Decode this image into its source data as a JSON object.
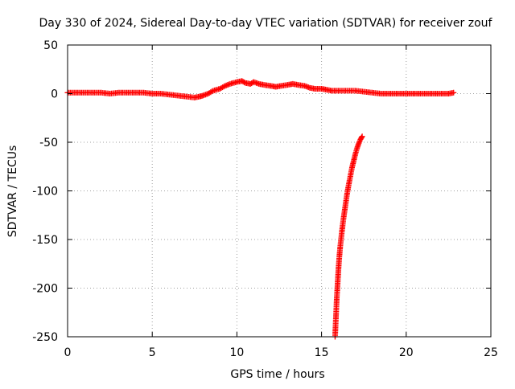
{
  "chart_data": {
    "type": "scatter",
    "title": "Day 330 of 2024, Sidereal Day-to-day VTEC variation (SDTVAR) for receiver zouf",
    "xlabel": "GPS time / hours",
    "ylabel": "SDTVAR / TECUs",
    "xlim": [
      0,
      25
    ],
    "ylim": [
      -250,
      50
    ],
    "xticks": [
      0,
      5,
      10,
      15,
      20,
      25
    ],
    "yticks": [
      50,
      0,
      -50,
      -100,
      -150,
      -200,
      -250
    ],
    "grid": true,
    "marker": "plus",
    "color": "#ff0000",
    "series": [
      {
        "x": [
          0.0,
          0.5,
          1.0,
          1.5,
          2.0,
          2.5,
          3.0,
          3.5,
          4.0,
          4.5,
          5.0,
          5.5,
          6.0,
          6.5,
          7.0,
          7.5,
          7.8,
          8.0,
          8.3,
          8.6,
          9.0,
          9.3,
          9.6,
          10.0,
          10.3,
          10.5,
          10.8,
          11.0,
          11.3,
          11.6,
          12.0,
          12.3,
          12.6,
          13.0,
          13.3,
          13.6,
          14.0,
          14.3,
          14.6,
          15.0,
          15.3,
          15.6,
          16.0,
          16.5,
          17.0,
          17.5,
          18.0,
          18.5,
          19.0,
          19.5,
          20.0,
          20.5,
          21.0,
          21.5,
          22.0,
          22.5,
          22.8
        ],
        "y": [
          1,
          1,
          1,
          1,
          1,
          0,
          1,
          1,
          1,
          1,
          0,
          0,
          -1,
          -2,
          -3,
          -4,
          -3,
          -2,
          0,
          3,
          5,
          8,
          10,
          12,
          13,
          11,
          10,
          12,
          10,
          9,
          8,
          7,
          8,
          9,
          10,
          9,
          8,
          6,
          5,
          5,
          4,
          3,
          3,
          3,
          3,
          2,
          1,
          0,
          0,
          0,
          0,
          0,
          0,
          0,
          0,
          0,
          1
        ]
      },
      {
        "x": [
          15.8,
          15.85,
          15.9,
          15.95,
          16.0,
          16.05,
          16.1,
          16.15,
          16.2,
          16.3,
          16.4,
          16.5,
          16.6,
          16.7,
          16.8,
          16.9,
          17.0,
          17.1,
          17.2,
          17.3,
          17.4
        ],
        "y": [
          -250,
          -230,
          -210,
          -195,
          -180,
          -168,
          -158,
          -150,
          -142,
          -128,
          -116,
          -104,
          -94,
          -85,
          -76,
          -69,
          -62,
          -56,
          -51,
          -47,
          -44
        ]
      }
    ]
  }
}
